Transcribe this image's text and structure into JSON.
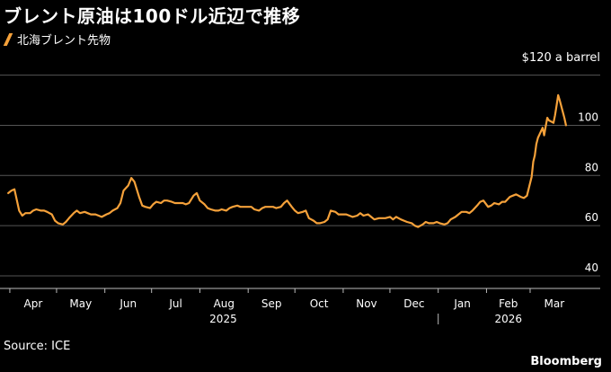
{
  "title": "ブレント原油は100ドル近辺で推移",
  "legend": {
    "label": "北海ブレント先物",
    "color": "#f5a13a"
  },
  "source": "Source: ICE",
  "brand": "Bloomberg",
  "chart_data": {
    "type": "line",
    "title": "ブレント原油は100ドル近辺で推移",
    "unit_label": "$120 a barrel",
    "ylim": [
      35,
      122
    ],
    "yticks": [
      40,
      60,
      80,
      100
    ],
    "grid": true,
    "legend_position": "top-left",
    "x_tick_labels": [
      "Apr",
      "May",
      "Jun",
      "Jul",
      "Aug",
      "Sep",
      "Oct",
      "Nov",
      "Dec",
      "Jan",
      "Feb",
      "Mar"
    ],
    "year_labels": [
      "2025",
      "2026"
    ],
    "series": [
      {
        "name": "北海ブレント先物",
        "color": "#f5a13a",
        "x": [
          "2025-03-31",
          "2025-04-02",
          "2025-04-04",
          "2025-04-07",
          "2025-04-09",
          "2025-04-11",
          "2025-04-14",
          "2025-04-16",
          "2025-04-18",
          "2025-04-21",
          "2025-04-23",
          "2025-04-25",
          "2025-04-28",
          "2025-04-30",
          "2025-05-02",
          "2025-05-05",
          "2025-05-07",
          "2025-05-09",
          "2025-05-12",
          "2025-05-14",
          "2025-05-16",
          "2025-05-19",
          "2025-05-21",
          "2025-05-23",
          "2025-05-26",
          "2025-05-28",
          "2025-05-30",
          "2025-06-02",
          "2025-06-04",
          "2025-06-06",
          "2025-06-09",
          "2025-06-11",
          "2025-06-13",
          "2025-06-16",
          "2025-06-18",
          "2025-06-20",
          "2025-06-23",
          "2025-06-25",
          "2025-06-27",
          "2025-06-30",
          "2025-07-02",
          "2025-07-04",
          "2025-07-07",
          "2025-07-09",
          "2025-07-11",
          "2025-07-14",
          "2025-07-16",
          "2025-07-18",
          "2025-07-21",
          "2025-07-23",
          "2025-07-25",
          "2025-07-28",
          "2025-07-30",
          "2025-08-01",
          "2025-08-04",
          "2025-08-06",
          "2025-08-08",
          "2025-08-11",
          "2025-08-13",
          "2025-08-15",
          "2025-08-18",
          "2025-08-20",
          "2025-08-22",
          "2025-08-25",
          "2025-08-27",
          "2025-08-29",
          "2025-09-01",
          "2025-09-03",
          "2025-09-05",
          "2025-09-08",
          "2025-09-10",
          "2025-09-12",
          "2025-09-15",
          "2025-09-17",
          "2025-09-19",
          "2025-09-22",
          "2025-09-24",
          "2025-09-26",
          "2025-09-29",
          "2025-10-01",
          "2025-10-03",
          "2025-10-06",
          "2025-10-08",
          "2025-10-10",
          "2025-10-13",
          "2025-10-15",
          "2025-10-17",
          "2025-10-20",
          "2025-10-22",
          "2025-10-24",
          "2025-10-27",
          "2025-10-29",
          "2025-10-31",
          "2025-11-03",
          "2025-11-05",
          "2025-11-07",
          "2025-11-10",
          "2025-11-12",
          "2025-11-14",
          "2025-11-17",
          "2025-11-19",
          "2025-11-21",
          "2025-11-24",
          "2025-11-26",
          "2025-11-28",
          "2025-12-01",
          "2025-12-03",
          "2025-12-05",
          "2025-12-08",
          "2025-12-10",
          "2025-12-12",
          "2025-12-15",
          "2025-12-17",
          "2025-12-19",
          "2025-12-22",
          "2025-12-24",
          "2025-12-26",
          "2025-12-29",
          "2025-12-31",
          "2026-01-02",
          "2026-01-05",
          "2026-01-07",
          "2026-01-09",
          "2026-01-12",
          "2026-01-14",
          "2026-01-16",
          "2026-01-19",
          "2026-01-21",
          "2026-01-23",
          "2026-01-26",
          "2026-01-28",
          "2026-01-30",
          "2026-02-02",
          "2026-02-04",
          "2026-02-06",
          "2026-02-09",
          "2026-02-11",
          "2026-02-13",
          "2026-02-16",
          "2026-02-18",
          "2026-02-20",
          "2026-02-23",
          "2026-02-25",
          "2026-02-27",
          "2026-03-02",
          "2026-03-03",
          "2026-03-04",
          "2026-03-05",
          "2026-03-06",
          "2026-03-09",
          "2026-03-10",
          "2026-03-11",
          "2026-03-12",
          "2026-03-13",
          "2026-03-16",
          "2026-03-17",
          "2026-03-18",
          "2026-03-19",
          "2026-03-20",
          "2026-03-23",
          "2026-03-24"
        ],
        "values": [
          73,
          74,
          74.5,
          66,
          64,
          65,
          65,
          66,
          66.5,
          66,
          66,
          65.5,
          64.5,
          62,
          61,
          60.5,
          61.5,
          63,
          65,
          66,
          65,
          65.5,
          65,
          64.5,
          64.5,
          64,
          63.5,
          64.5,
          65,
          66,
          67,
          69,
          74,
          76,
          79,
          77.5,
          71.5,
          68,
          67.5,
          67,
          68.5,
          69.5,
          69,
          70,
          70,
          69.5,
          69,
          69,
          69,
          68.5,
          69,
          72,
          73,
          70,
          68.5,
          67,
          66.5,
          66,
          66,
          66.5,
          66,
          67,
          67.5,
          68,
          67.5,
          67.5,
          67.5,
          67.5,
          66.5,
          66,
          67,
          67.5,
          67.5,
          67.5,
          67,
          67.5,
          69,
          70,
          67.5,
          66,
          65,
          65.5,
          66,
          63,
          62,
          61,
          61,
          61.5,
          62.5,
          66,
          65.5,
          64.5,
          64.5,
          64.5,
          64,
          63.5,
          64,
          65,
          64,
          64.5,
          63.5,
          62.5,
          63,
          63,
          63,
          63.5,
          62.5,
          63.5,
          62.5,
          62,
          61.5,
          61,
          60,
          59.5,
          60.5,
          61.5,
          61,
          61,
          61.5,
          61,
          60.5,
          61,
          62.5,
          63.5,
          64.5,
          65.5,
          65.5,
          65,
          66,
          68,
          69.5,
          70,
          67.5,
          68,
          69,
          68.5,
          69.5,
          69.5,
          71.5,
          72,
          72.5,
          71.5,
          71,
          72,
          79.5,
          85.5,
          88,
          92.5,
          95,
          99,
          96,
          99.5,
          103,
          102,
          101,
          104,
          108,
          112,
          110,
          103,
          100
        ]
      }
    ]
  }
}
